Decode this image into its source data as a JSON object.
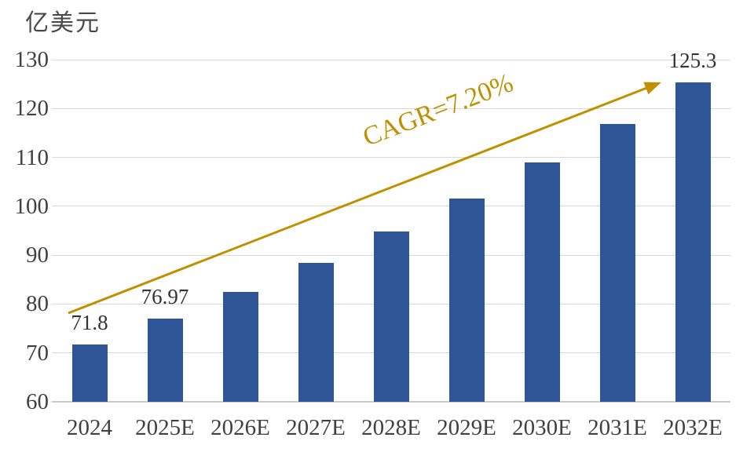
{
  "chart_data": {
    "type": "bar",
    "title": "",
    "unit_label": "亿美元",
    "categories": [
      "2024",
      "2025E",
      "2026E",
      "2027E",
      "2028E",
      "2029E",
      "2030E",
      "2031E",
      "2032E"
    ],
    "values": [
      71.8,
      76.97,
      82.51,
      88.45,
      94.82,
      101.65,
      108.97,
      116.81,
      125.3
    ],
    "data_labels": [
      "71.8",
      "76.97",
      "",
      "",
      "",
      "",
      "",
      "",
      "125.3"
    ],
    "ylim": [
      60,
      130
    ],
    "ytick_step": 10,
    "grid": true,
    "legend": false,
    "annotation": {
      "text": "CAGR=7.20%",
      "type": "trend-arrow"
    },
    "colors": {
      "bar": "#2E5596",
      "arrow": "#BF9000",
      "gridline": "#D9D9D9",
      "baseline": "#C9C9C9",
      "axis_text": "#404040",
      "data_label_text": "#333333"
    }
  }
}
